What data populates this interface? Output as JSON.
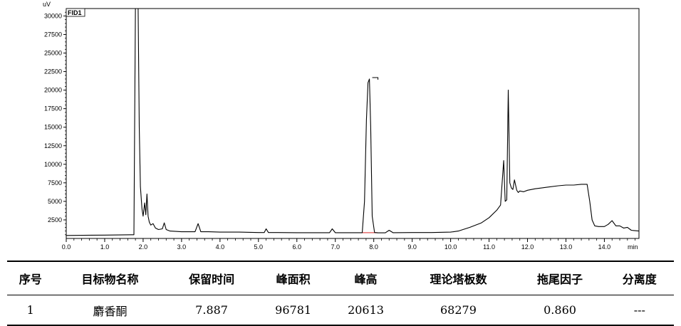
{
  "chart_data": {
    "type": "line",
    "ylabel_unit": "uV",
    "xlabel_unit": "min",
    "legend": "FID1",
    "xlim": [
      0,
      14.9
    ],
    "ylim": [
      0,
      31000
    ],
    "x_ticks": [
      0.0,
      1.0,
      2.0,
      3.0,
      4.0,
      5.0,
      6.0,
      7.0,
      8.0,
      9.0,
      10.0,
      11.0,
      12.0,
      13.0,
      14.0
    ],
    "x_tick_labels": [
      "0.0",
      "1.0",
      "2.0",
      "3.0",
      "4.0",
      "5.0",
      "6.0",
      "7.0",
      "8.0",
      "9.0",
      "10.0",
      "11.0",
      "12.0",
      "13.0",
      "14.0"
    ],
    "y_ticks": [
      2500,
      5000,
      7500,
      10000,
      12500,
      15000,
      17500,
      20000,
      22500,
      25000,
      27500,
      30000
    ],
    "y_tick_labels": [
      "2500",
      "5000",
      "7500",
      "10000",
      "12500",
      "15000",
      "17500",
      "20000",
      "22500",
      "25000",
      "27500",
      "30000"
    ],
    "series": [
      {
        "color": "#000000",
        "x": [
          0.0,
          1.0,
          1.7,
          1.76,
          1.8,
          1.84,
          1.87,
          1.9,
          1.93,
          1.97,
          2.0,
          2.04,
          2.07,
          2.1,
          2.13,
          2.16,
          2.2,
          2.26,
          2.32,
          2.4,
          2.5,
          2.55,
          2.6,
          2.7,
          3.0,
          3.35,
          3.43,
          3.5,
          3.7,
          4.0,
          4.5,
          5.0,
          5.15,
          5.2,
          5.26,
          5.5,
          6.0,
          6.5,
          6.85,
          6.92,
          7.0,
          7.3,
          7.7,
          7.76,
          7.81,
          7.85,
          7.887,
          7.92,
          7.96,
          8.02,
          8.1,
          8.3,
          8.4,
          8.5,
          9.0,
          9.5,
          10.0,
          10.2,
          10.5,
          10.8,
          11.0,
          11.2,
          11.3,
          11.38,
          11.42,
          11.46,
          11.5,
          11.54,
          11.58,
          11.62,
          11.66,
          11.72,
          11.76,
          11.8,
          11.9,
          12.0,
          12.2,
          12.5,
          12.8,
          13.0,
          13.2,
          13.4,
          13.55,
          13.62,
          13.68,
          13.75,
          13.85,
          14.0,
          14.1,
          14.2,
          14.3,
          14.4,
          14.5,
          14.6,
          14.7,
          14.9
        ],
        "y": [
          400,
          450,
          500,
          500,
          31000,
          31000,
          31000,
          15000,
          7000,
          4000,
          3000,
          4800,
          3200,
          6000,
          3000,
          2200,
          1800,
          2000,
          1400,
          1200,
          1300,
          2100,
          1200,
          1000,
          900,
          900,
          2000,
          900,
          900,
          850,
          850,
          800,
          800,
          1300,
          800,
          800,
          780,
          780,
          780,
          1300,
          780,
          780,
          780,
          5000,
          16000,
          21000,
          21500,
          15000,
          3000,
          800,
          760,
          760,
          1100,
          780,
          800,
          800,
          850,
          1000,
          1500,
          2100,
          2800,
          3800,
          4500,
          10500,
          5000,
          5200,
          20000,
          7500,
          6800,
          6600,
          7900,
          6500,
          6200,
          6400,
          6300,
          6500,
          6700,
          6900,
          7100,
          7200,
          7200,
          7300,
          7300,
          5000,
          2500,
          1700,
          1600,
          1600,
          1900,
          2400,
          1700,
          1700,
          1400,
          1500,
          1100,
          1000
        ]
      }
    ],
    "annotations": [
      {
        "x": 7.887,
        "kind": "baseline-segment",
        "x_start": 7.7,
        "x_end": 8.1
      }
    ]
  },
  "table": {
    "headers": [
      "序号",
      "目标物名称",
      "保留时间",
      "峰面积",
      "峰高",
      "理论塔板数",
      "拖尾因子",
      "分离度"
    ],
    "rows": [
      [
        "1",
        "麝香酮",
        "7.887",
        "96781",
        "20613",
        "68279",
        "0.860",
        "---"
      ]
    ]
  }
}
